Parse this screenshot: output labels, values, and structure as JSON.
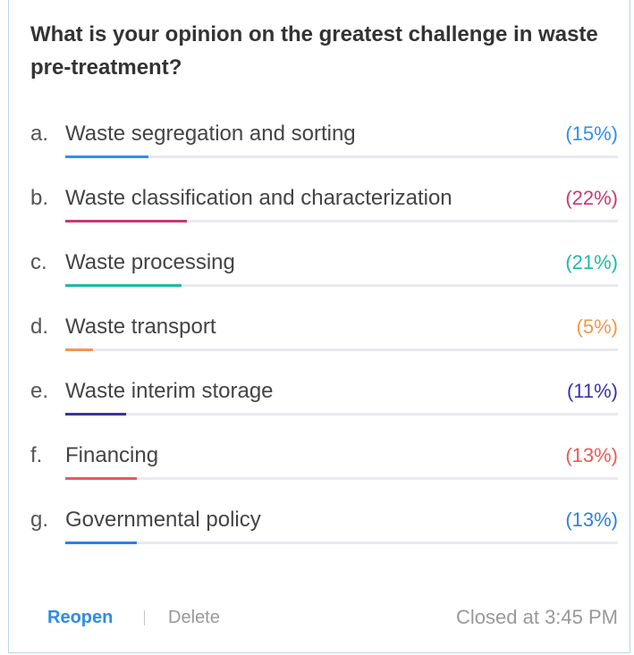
{
  "poll": {
    "question": "What is your opinion on the greatest challenge in waste pre-treatment?",
    "options": [
      {
        "letter": "a.",
        "label": "Waste segregation and sorting",
        "value": 15,
        "value_label": "(15%)",
        "color": "#2f8ff0"
      },
      {
        "letter": "b.",
        "label": "Waste classification and characterization",
        "value": 22,
        "value_label": "(22%)",
        "color": "#c43a72"
      },
      {
        "letter": "c.",
        "label": "Waste processing",
        "value": 21,
        "value_label": "(21%)",
        "color": "#1fbaa6"
      },
      {
        "letter": "d.",
        "label": "Waste transport",
        "value": 5,
        "value_label": "(5%)",
        "color": "#f0984c"
      },
      {
        "letter": "e.",
        "label": "Waste interim storage",
        "value": 11,
        "value_label": "(11%)",
        "color": "#3a32a8"
      },
      {
        "letter": "f.",
        "label": "Financing",
        "value": 13,
        "value_label": "(13%)",
        "color": "#ee5858"
      },
      {
        "letter": "g.",
        "label": "Governmental policy",
        "value": 13,
        "value_label": "(13%)",
        "color": "#2d80e2"
      }
    ],
    "footer": {
      "reopen": "Reopen",
      "delete": "Delete",
      "status": "Closed at 3:45 PM"
    }
  }
}
